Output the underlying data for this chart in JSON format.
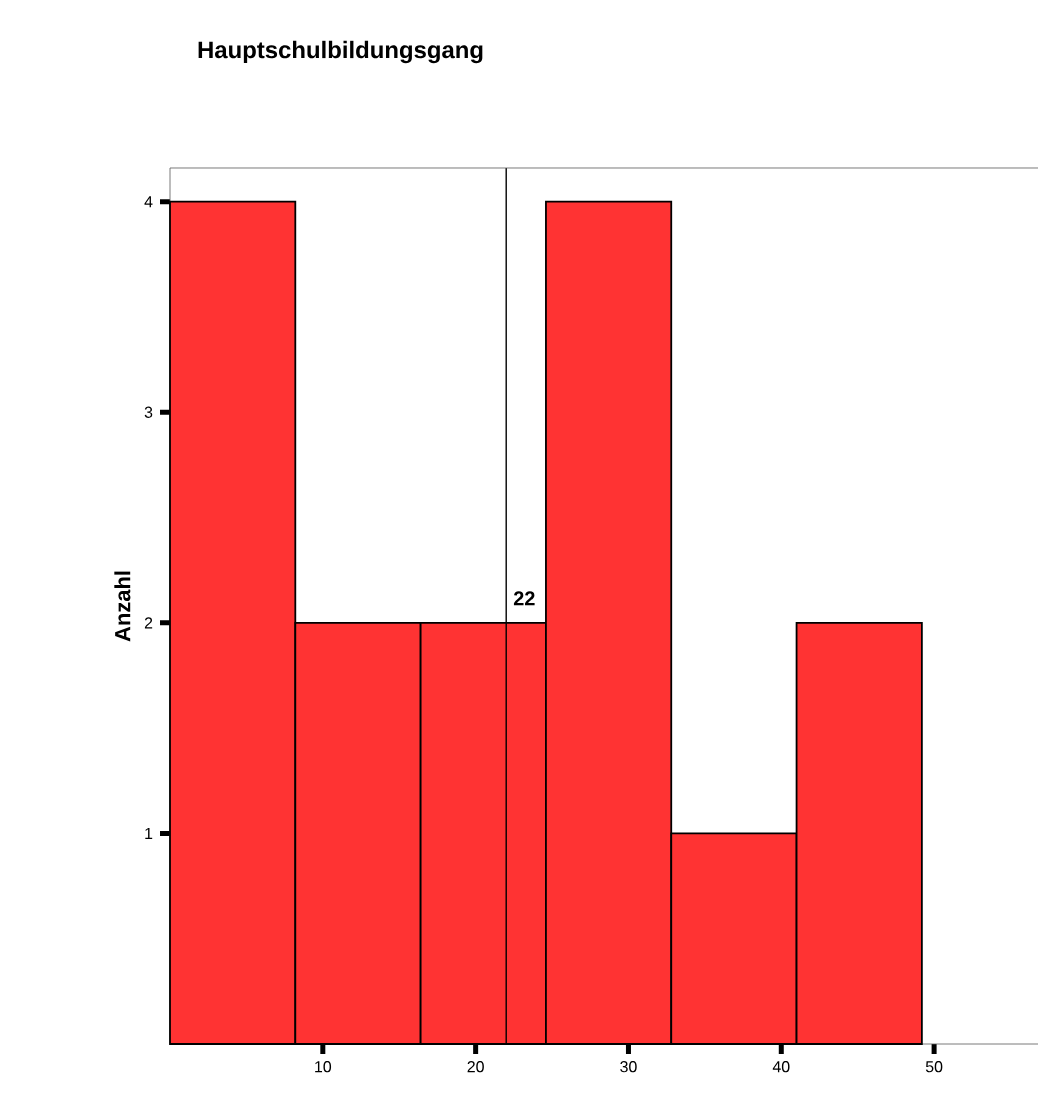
{
  "chart_data": {
    "type": "histogram",
    "title": "Hauptschulbildungsgang",
    "ylabel": "Anzahl",
    "bins": [
      0,
      8.2,
      16.4,
      24.6,
      32.8,
      41,
      49.2
    ],
    "values": [
      4,
      2,
      2,
      4,
      1,
      2
    ],
    "color": "#ff3333",
    "xlim": [
      0,
      56.8
    ],
    "ylim": [
      0,
      4.16
    ],
    "xticks": [
      10,
      20,
      30,
      40,
      50
    ],
    "yticks": [
      1,
      2,
      3,
      4
    ],
    "ref_lines": [
      {
        "axis": "x",
        "value": 22,
        "label": "22"
      }
    ],
    "grid": false
  }
}
